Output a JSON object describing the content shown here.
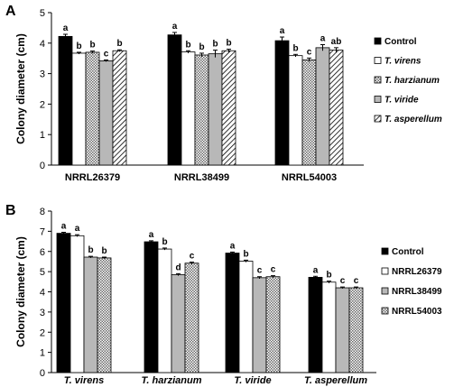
{
  "chart_data": [
    {
      "type": "bar",
      "panel_label": "A",
      "ylabel": "Colony diameter (cm)",
      "ylim": [
        0,
        5
      ],
      "yticks": [
        0,
        1,
        2,
        3,
        4,
        5
      ],
      "categories": [
        "NRRL26379",
        "NRRL38499",
        "NRRL54003"
      ],
      "category_italic": false,
      "legend_position": "right",
      "series": [
        {
          "name": "Control",
          "legend_italic": false,
          "pattern": "solid",
          "values": [
            4.22,
            4.27,
            4.08
          ],
          "errors": [
            0.07,
            0.08,
            0.12
          ],
          "labels": [
            "a",
            "a",
            "a"
          ]
        },
        {
          "name": "T. virens",
          "legend_italic": true,
          "pattern": "white",
          "values": [
            3.67,
            3.71,
            3.59
          ],
          "errors": [
            0.03,
            0.04,
            0.04
          ],
          "labels": [
            "b",
            "b",
            "b"
          ]
        },
        {
          "name": "T. harzianum",
          "legend_italic": true,
          "pattern": "dots",
          "values": [
            3.7,
            3.61,
            3.45
          ],
          "errors": [
            0.04,
            0.06,
            0.06
          ],
          "labels": [
            "b",
            "b",
            "c"
          ]
        },
        {
          "name": "T. viride",
          "legend_italic": true,
          "pattern": "gray",
          "values": [
            3.42,
            3.65,
            3.85
          ],
          "errors": [
            0.03,
            0.12,
            0.1
          ],
          "labels": [
            "c",
            "b",
            "a"
          ]
        },
        {
          "name": "T. asperellum",
          "legend_italic": true,
          "pattern": "hatch",
          "values": [
            3.75,
            3.75,
            3.77
          ],
          "errors": [
            0.03,
            0.05,
            0.08
          ],
          "labels": [
            "b",
            "b",
            "ab"
          ]
        }
      ]
    },
    {
      "type": "bar",
      "panel_label": "B",
      "ylabel": "Colony diameter (cm)",
      "ylim": [
        0,
        8
      ],
      "yticks": [
        0,
        1,
        2,
        3,
        4,
        5,
        6,
        7,
        8
      ],
      "categories": [
        "T. virens",
        "T. harzianum",
        "T. viride",
        "T. asperellum"
      ],
      "category_italic": true,
      "legend_position": "right",
      "series": [
        {
          "name": "Control",
          "legend_italic": false,
          "pattern": "solid",
          "values": [
            6.9,
            6.48,
            5.92,
            4.72
          ],
          "errors": [
            0.05,
            0.05,
            0.05,
            0.05
          ],
          "labels": [
            "a",
            "a",
            "a",
            "a"
          ]
        },
        {
          "name": "NRRL26379",
          "legend_italic": false,
          "pattern": "white",
          "values": [
            6.78,
            6.12,
            5.52,
            4.48
          ],
          "errors": [
            0.05,
            0.05,
            0.05,
            0.05
          ],
          "labels": [
            "a",
            "b",
            "b",
            "b"
          ]
        },
        {
          "name": "NRRL38499",
          "legend_italic": false,
          "pattern": "gray",
          "values": [
            5.72,
            4.85,
            4.7,
            4.2
          ],
          "errors": [
            0.04,
            0.05,
            0.05,
            0.04
          ],
          "labels": [
            "b",
            "d",
            "c",
            "c"
          ]
        },
        {
          "name": "NRRL54003",
          "legend_italic": false,
          "pattern": "dots",
          "values": [
            5.68,
            5.42,
            4.75,
            4.2
          ],
          "errors": [
            0.04,
            0.05,
            0.05,
            0.04
          ],
          "labels": [
            "b",
            "c",
            "c",
            "c"
          ]
        }
      ]
    }
  ]
}
